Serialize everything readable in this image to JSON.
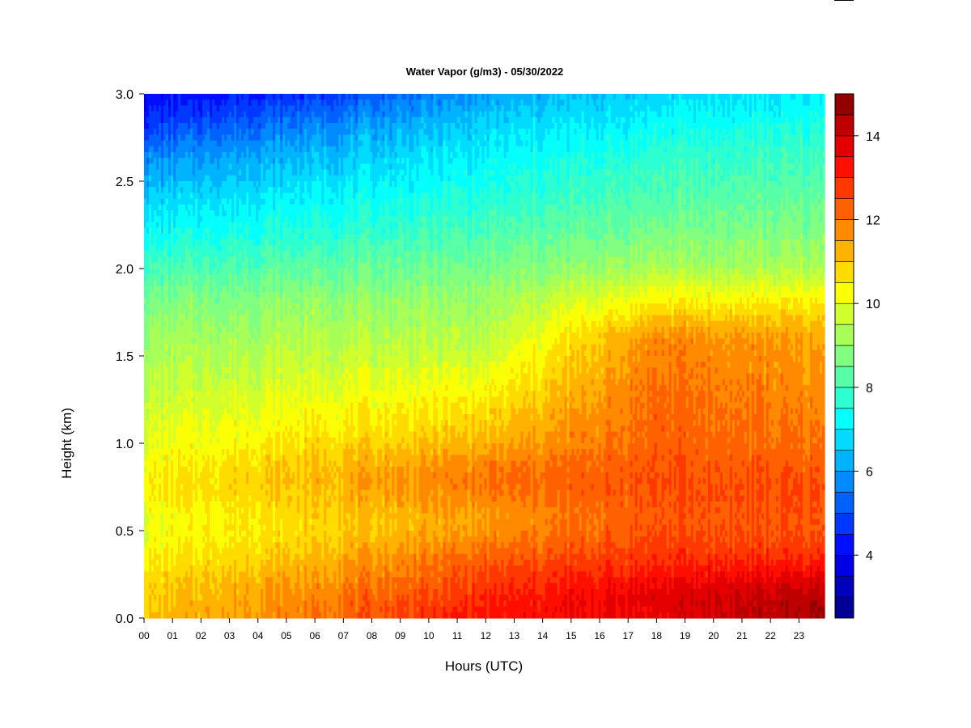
{
  "chart_data": {
    "type": "heatmap",
    "title": "Water Vapor (g/m3) - 05/30/2022",
    "xlabel": "Hours (UTC)",
    "ylabel": "Height (km)",
    "x_ticks": [
      "00",
      "01",
      "02",
      "03",
      "04",
      "05",
      "06",
      "07",
      "08",
      "09",
      "10",
      "11",
      "12",
      "13",
      "14",
      "15",
      "16",
      "17",
      "18",
      "19",
      "20",
      "21",
      "22",
      "23"
    ],
    "x_range": [
      0,
      23.9
    ],
    "y_ticks": [
      "0.0",
      "0.5",
      "1.0",
      "1.5",
      "2.0",
      "2.5",
      "3.0"
    ],
    "ylim": [
      0,
      3
    ],
    "colorbar": {
      "min": 2.5,
      "max": 15,
      "step": 0.5,
      "ticks": [
        "4",
        "6",
        "8",
        "10",
        "12",
        "14"
      ],
      "tick_values": [
        4,
        6,
        8,
        10,
        12,
        14
      ],
      "colormap": "jet"
    },
    "heights_km": [
      0.0,
      0.1,
      0.2,
      0.3,
      0.4,
      0.5,
      0.6,
      0.7,
      0.8,
      0.9,
      1.0,
      1.2,
      1.4,
      1.6,
      1.8,
      2.0,
      2.2,
      2.4,
      2.6,
      2.8,
      3.0
    ],
    "hours": [
      0,
      2,
      4,
      6,
      8,
      10,
      12,
      14,
      16,
      17,
      18,
      20,
      22,
      23.9
    ],
    "values": [
      [
        11.0,
        12.0,
        13.2,
        13.6,
        14.5
      ],
      [
        10.8,
        11.9,
        13.0,
        13.8,
        14.4
      ],
      [
        10.8,
        11.6,
        12.7,
        13.5,
        14.0
      ],
      [
        10.5,
        11.3,
        12.4,
        13.0,
        13.2
      ],
      [
        10.3,
        11.0,
        12.0,
        12.7,
        12.7
      ],
      [
        10.1,
        10.8,
        11.6,
        12.5,
        12.4
      ],
      [
        10.1,
        10.9,
        11.5,
        12.4,
        12.4
      ],
      [
        10.4,
        11.0,
        11.9,
        12.5,
        12.5
      ],
      [
        10.4,
        11.2,
        12.0,
        12.5,
        12.4
      ],
      [
        10.2,
        11.0,
        11.7,
        12.4,
        12.2
      ],
      [
        10.0,
        10.7,
        11.2,
        12.3,
        12.0
      ],
      [
        9.7,
        10.2,
        10.6,
        12.2,
        11.8
      ],
      [
        9.4,
        9.8,
        10.0,
        12.0,
        11.6
      ],
      [
        9.1,
        9.4,
        9.4,
        11.8,
        11.4
      ],
      [
        8.7,
        9.0,
        9.1,
        10.5,
        10.5
      ],
      [
        8.0,
        8.4,
        8.6,
        9.3,
        9.3
      ],
      [
        7.3,
        7.7,
        8.1,
        8.7,
        8.8
      ],
      [
        6.6,
        7.2,
        7.6,
        8.2,
        8.4
      ],
      [
        5.9,
        6.5,
        7.2,
        7.8,
        8.0
      ],
      [
        4.8,
        5.8,
        6.7,
        7.3,
        7.6
      ],
      [
        4.0,
        4.7,
        6.0,
        6.7,
        7.0
      ]
    ],
    "values_columns_hours": [
      0,
      6,
      12,
      18,
      23.9
    ],
    "grid": false
  }
}
